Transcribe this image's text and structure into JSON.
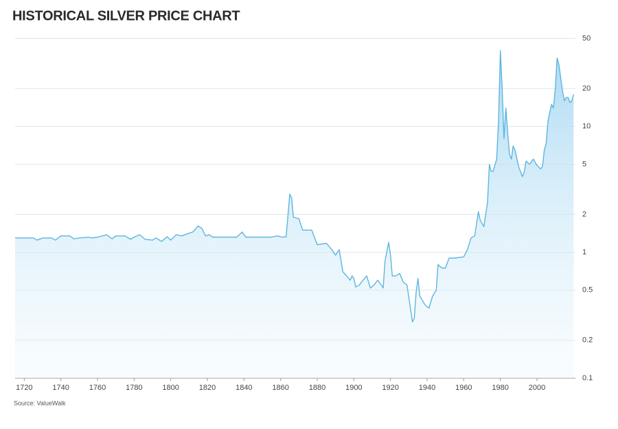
{
  "chart_data": {
    "type": "area",
    "title": "HISTORICAL SILVER PRICE CHART",
    "source": "Source: ValueWalk",
    "color": "#5cb6de",
    "log_scale": true,
    "grid": true,
    "xlim": [
      1715,
      2021
    ],
    "xticks": [
      1720,
      1740,
      1760,
      1780,
      1800,
      1820,
      1840,
      1860,
      1880,
      1900,
      1920,
      1940,
      1960,
      1980,
      2000
    ],
    "ylim": [
      0.1,
      50
    ],
    "yticks": [
      0.1,
      0.2,
      0.5,
      1,
      2,
      5,
      10,
      20,
      50
    ],
    "x": [
      1715,
      1725,
      1727,
      1730,
      1735,
      1737,
      1740,
      1745,
      1747,
      1750,
      1755,
      1757,
      1760,
      1765,
      1768,
      1770,
      1775,
      1778,
      1780,
      1783,
      1786,
      1790,
      1792,
      1795,
      1798,
      1800,
      1803,
      1806,
      1810,
      1812,
      1815,
      1817,
      1819,
      1821,
      1823,
      1830,
      1836,
      1839,
      1841,
      1850,
      1855,
      1858,
      1861,
      1863,
      1865,
      1866,
      1867,
      1870,
      1872,
      1877,
      1880,
      1885,
      1888,
      1890,
      1892,
      1894,
      1896,
      1898,
      1899,
      1900,
      1901,
      1903,
      1905,
      1907,
      1909,
      1911,
      1913,
      1915,
      1916,
      1917,
      1919,
      1920,
      1921,
      1923,
      1925,
      1927,
      1929,
      1931,
      1932,
      1933,
      1934,
      1935,
      1936,
      1939,
      1941,
      1943,
      1945,
      1946,
      1948,
      1950,
      1952,
      1955,
      1960,
      1962,
      1964,
      1966,
      1968,
      1969,
      1971,
      1973,
      1974,
      1975,
      1976,
      1978,
      1979,
      1980,
      1981,
      1982,
      1983,
      1984,
      1985,
      1986,
      1987,
      1988,
      1990,
      1992,
      1993,
      1994,
      1996,
      1998,
      1999,
      2000,
      2002,
      2003,
      2004,
      2005,
      2006,
      2007,
      2008,
      2009,
      2010,
      2011,
      2012,
      2013,
      2014,
      2015,
      2016,
      2017,
      2018,
      2019,
      2020
    ],
    "values": [
      1.3,
      1.3,
      1.25,
      1.3,
      1.3,
      1.25,
      1.35,
      1.35,
      1.28,
      1.3,
      1.32,
      1.3,
      1.32,
      1.38,
      1.28,
      1.35,
      1.35,
      1.27,
      1.32,
      1.38,
      1.27,
      1.25,
      1.3,
      1.22,
      1.33,
      1.25,
      1.38,
      1.35,
      1.42,
      1.45,
      1.62,
      1.55,
      1.35,
      1.38,
      1.32,
      1.32,
      1.32,
      1.45,
      1.32,
      1.32,
      1.32,
      1.35,
      1.32,
      1.33,
      2.9,
      2.7,
      1.9,
      1.85,
      1.5,
      1.5,
      1.15,
      1.18,
      1.05,
      0.95,
      1.05,
      0.7,
      0.65,
      0.6,
      0.65,
      0.62,
      0.53,
      0.55,
      0.6,
      0.65,
      0.52,
      0.55,
      0.6,
      0.55,
      0.52,
      0.85,
      1.2,
      0.95,
      0.65,
      0.65,
      0.68,
      0.58,
      0.55,
      0.35,
      0.28,
      0.3,
      0.48,
      0.62,
      0.45,
      0.38,
      0.36,
      0.45,
      0.5,
      0.8,
      0.75,
      0.75,
      0.9,
      0.9,
      0.92,
      1.05,
      1.3,
      1.35,
      2.1,
      1.8,
      1.6,
      2.5,
      5,
      4.4,
      4.4,
      5.5,
      11,
      40,
      20,
      8,
      14,
      9,
      6,
      5.5,
      7,
      6.5,
      4.8,
      4,
      4.3,
      5.3,
      5,
      5.5,
      5.2,
      4.9,
      4.6,
      4.8,
      6.5,
      7.3,
      11,
      13,
      15,
      14,
      20,
      35,
      31,
      24,
      19,
      16,
      17,
      17,
      15.5,
      16,
      18
    ]
  }
}
